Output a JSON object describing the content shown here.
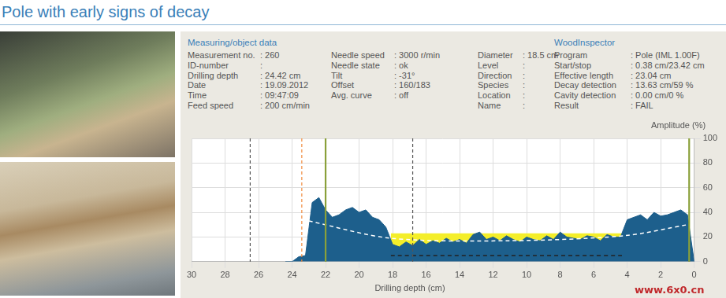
{
  "header": {
    "title": "Pole with early signs of decay"
  },
  "panel": {
    "heading": "Measuring/object data",
    "program_heading": "WoodInspector",
    "columns": [
      [
        [
          "Measurement no.",
          ": 260"
        ],
        [
          "ID-number",
          ":"
        ],
        [
          "Drilling depth",
          ": 24.42 cm"
        ],
        [
          "Date",
          ": 19.09.2012"
        ],
        [
          "Time",
          ": 09:47:09"
        ],
        [
          "Feed speed",
          ": 200 cm/min"
        ]
      ],
      [
        [
          "Needle speed",
          ": 3000 r/min"
        ],
        [
          "Needle state",
          ": ok"
        ],
        [
          "Tilt",
          ": -31°"
        ],
        [
          "Offset",
          ": 160/183"
        ],
        [
          "Avg. curve",
          ": off"
        ]
      ],
      [
        [
          "Diameter",
          ": 18.5 cm"
        ],
        [
          "Level",
          ":"
        ],
        [
          "Direction",
          ":"
        ],
        [
          "Species",
          ":"
        ],
        [
          "Location",
          ":"
        ],
        [
          "Name",
          ":"
        ]
      ],
      [
        [
          "Program",
          ": Pole (IML 1.00F)"
        ],
        [
          "Start/stop",
          ": 0.38 cm/23.42 cm"
        ],
        [
          "Effective length",
          ": 23.04 cm"
        ],
        [
          "Decay detection",
          ": 13.63 cm/59 %"
        ],
        [
          "Cavity detection",
          ": 0.00 cm/0 %"
        ],
        [
          "Result",
          ": FAIL"
        ]
      ]
    ]
  },
  "watermark": "www.6x0.cn",
  "chart_data": {
    "type": "line",
    "x_label": "Drilling depth (cm)",
    "y_label": "Amplitude (%)",
    "xlim": [
      30,
      0
    ],
    "xticks": [
      30,
      28,
      26,
      24,
      22,
      20,
      18,
      16,
      14,
      12,
      10,
      8,
      6,
      4,
      2,
      0
    ],
    "ylim": [
      0,
      100
    ],
    "yticks": [
      0,
      20,
      40,
      60,
      80,
      100
    ],
    "grid": true,
    "series": [
      {
        "type": "area",
        "color": "#1d5f8c",
        "x": [
          24.4,
          24.0,
          23.6,
          23.2,
          22.8,
          22.4,
          22.0,
          21.6,
          21.2,
          20.8,
          20.4,
          20.0,
          19.6,
          19.2,
          18.8,
          18.4,
          18.0,
          17.6,
          17.2,
          16.8,
          16.4,
          16.0,
          15.6,
          15.2,
          14.8,
          14.4,
          14.0,
          13.6,
          13.2,
          12.8,
          12.4,
          12.0,
          11.6,
          11.2,
          10.8,
          10.4,
          10.0,
          9.6,
          9.2,
          8.8,
          8.4,
          8.0,
          7.6,
          7.2,
          6.8,
          6.4,
          6.0,
          5.6,
          5.2,
          4.8,
          4.4,
          4.0,
          3.6,
          3.2,
          2.8,
          2.4,
          2.0,
          1.6,
          1.2,
          0.8,
          0.4,
          0.0
        ],
        "values": [
          0,
          0,
          4,
          5,
          48,
          52,
          42,
          36,
          38,
          42,
          44,
          40,
          42,
          36,
          34,
          28,
          14,
          12,
          16,
          13,
          18,
          14,
          17,
          15,
          19,
          16,
          18,
          15,
          22,
          24,
          18,
          20,
          17,
          21,
          18,
          16,
          20,
          18,
          17,
          21,
          18,
          24,
          20,
          19,
          18,
          21,
          20,
          17,
          22,
          20,
          20,
          34,
          36,
          38,
          34,
          40,
          37,
          38,
          40,
          42,
          38,
          0
        ]
      },
      {
        "type": "area",
        "color": "#f4ee2a",
        "x": [
          18.1,
          4.2
        ],
        "base": [
          5,
          5
        ],
        "values": [
          23,
          23
        ]
      },
      {
        "type": "line",
        "color": "#222222",
        "line_style": "dashed",
        "x": [
          18.1,
          4.2
        ],
        "values": [
          5,
          5
        ]
      },
      {
        "type": "line",
        "color": "#ffffff",
        "line_style": "dashed",
        "x": [
          23.0,
          18.1,
          11.0,
          4.2,
          0.4
        ],
        "values": [
          33,
          19,
          17,
          21,
          30
        ]
      }
    ],
    "vertical_lines": [
      {
        "x": 26.5,
        "color": "#555555",
        "line_style": "dashed"
      },
      {
        "x": 23.42,
        "color": "#f08a3c",
        "line_style": "dashed"
      },
      {
        "x": 22.0,
        "color": "#8aa03a",
        "line_style": "solid"
      },
      {
        "x": 16.8,
        "color": "#555555",
        "line_style": "dashed"
      },
      {
        "x": 0.3,
        "color": "#8aa03a",
        "line_style": "solid"
      }
    ]
  }
}
